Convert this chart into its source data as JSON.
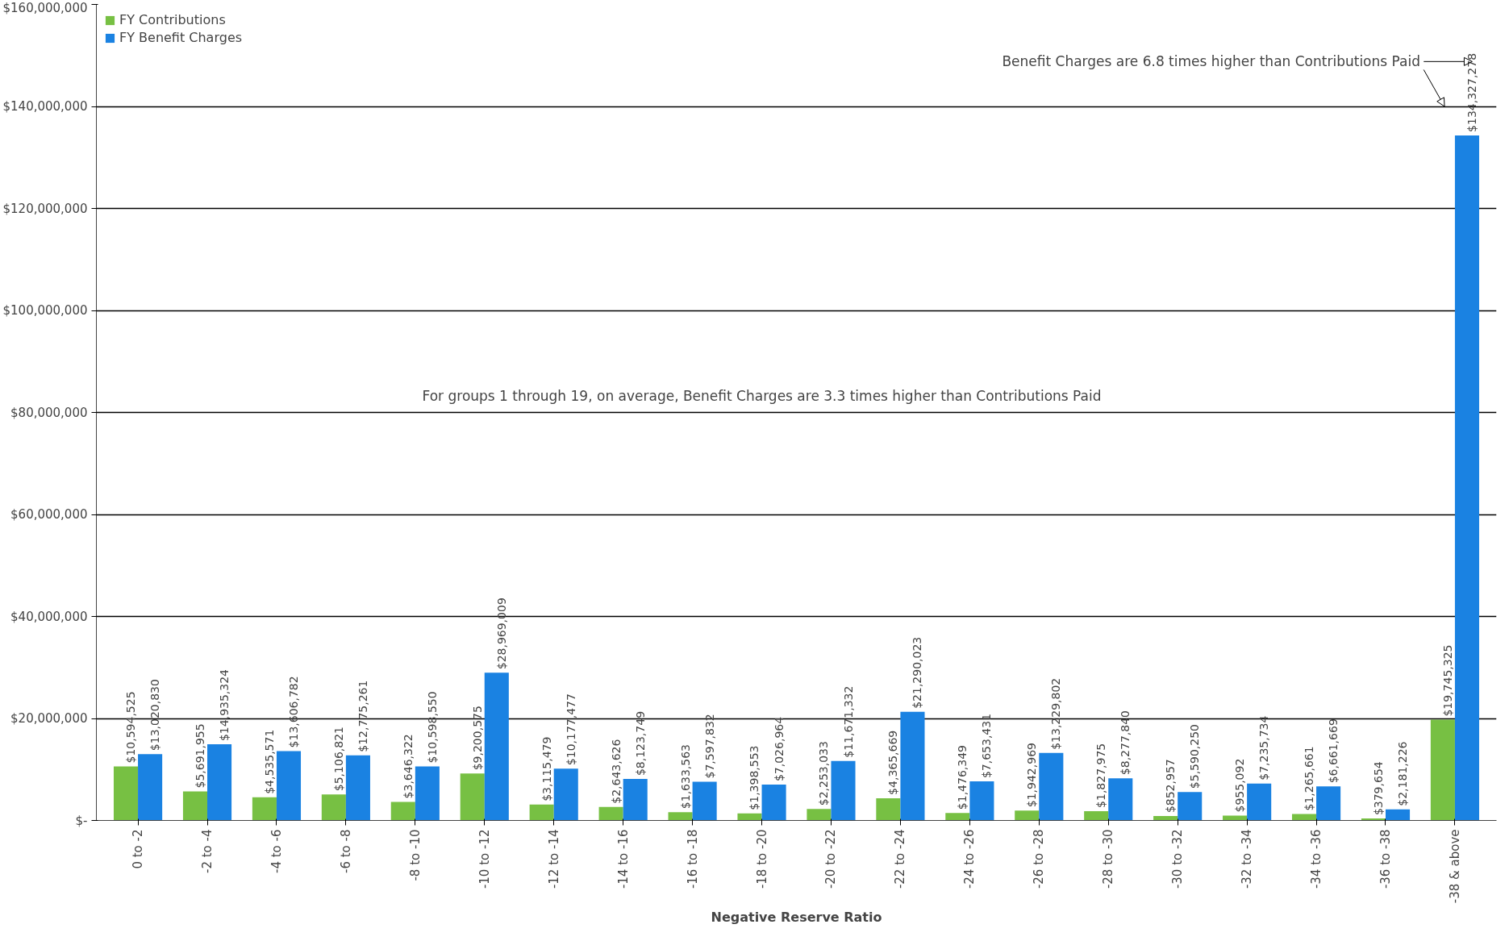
{
  "chart_data": {
    "type": "bar",
    "xlabel": "Negative Reserve Ratio",
    "categories": [
      "0 to -2",
      "-2 to -4",
      "-4 to -6",
      "-6 to -8",
      "-8 to -10",
      "-10 to -12",
      "-12 to -14",
      "-14 to -16",
      "-16 to -18",
      "-18 to -20",
      "-20 to -22",
      "-22 to -24",
      "-24 to -26",
      "-26 to -28",
      "-28 to -30",
      "-30 to -32",
      "-32 to -34",
      "-34 to -36",
      "-36 to -38",
      "-38 & above"
    ],
    "series": [
      {
        "name": "FY Contributions",
        "color": "#77c043",
        "values": [
          10594525,
          5691955,
          4535571,
          5106821,
          3646322,
          9200575,
          3115479,
          2643626,
          1633563,
          1398553,
          2253033,
          4365669,
          1476349,
          1942969,
          1827975,
          852957,
          955092,
          1265661,
          379654,
          19745325
        ],
        "value_labels": [
          "$10,594,525",
          "$5,691,955",
          "$4,535,571",
          "$5,106,821",
          "$3,646,322",
          "$9,200,575",
          "$3,115,479",
          "$2,643,626",
          "$1,633,563",
          "$1,398,553",
          "$2,253,033",
          "$4,365,669",
          "$1,476,349",
          "$1,942,969",
          "$1,827,975",
          "$852,957",
          "$955,092",
          "$1,265,661",
          "$379,654",
          "$19,745,325"
        ]
      },
      {
        "name": "FY Benefit Charges",
        "color": "#1a82e2",
        "values": [
          13020830,
          14935324,
          13606782,
          12775261,
          10598550,
          28969009,
          10177477,
          8123749,
          7597832,
          7026964,
          11671332,
          21290023,
          7653431,
          13229802,
          8277840,
          5590250,
          7235734,
          6661669,
          2181226,
          134327278
        ],
        "value_labels": [
          "$13,020,830",
          "$14,935,324",
          "$13,606,782",
          "$12,775,261",
          "$10,598,550",
          "$28,969,009",
          "$10,177,477",
          "$8,123,749",
          "$7,597,832",
          "$7,026,964",
          "$11,671,332",
          "$21,290,023",
          "$7,653,431",
          "$13,229,802",
          "$8,277,840",
          "$5,590,250",
          "$7,235,734",
          "$6,661,669",
          "$2,181,226",
          "$134,327,278"
        ]
      }
    ],
    "ylim": [
      0,
      160000000
    ],
    "yticks": [
      {
        "value": 0,
        "label": "$-"
      },
      {
        "value": 20000000,
        "label": "$20,000,000"
      },
      {
        "value": 40000000,
        "label": "$40,000,000"
      },
      {
        "value": 60000000,
        "label": "$60,000,000"
      },
      {
        "value": 80000000,
        "label": "$80,000,000"
      },
      {
        "value": 100000000,
        "label": "$100,000,000"
      },
      {
        "value": 120000000,
        "label": "$120,000,000"
      },
      {
        "value": 140000000,
        "label": "$140,000,000"
      },
      {
        "value": 160000000,
        "label": "$160,000,000"
      }
    ],
    "grid": "y",
    "legend": "top left",
    "annotations": [
      "Benefit Charges are 6.8 times higher than Contributions Paid",
      "For groups 1 through 19, on average, Benefit Charges are 3.3 times higher than Contributions Paid"
    ]
  }
}
